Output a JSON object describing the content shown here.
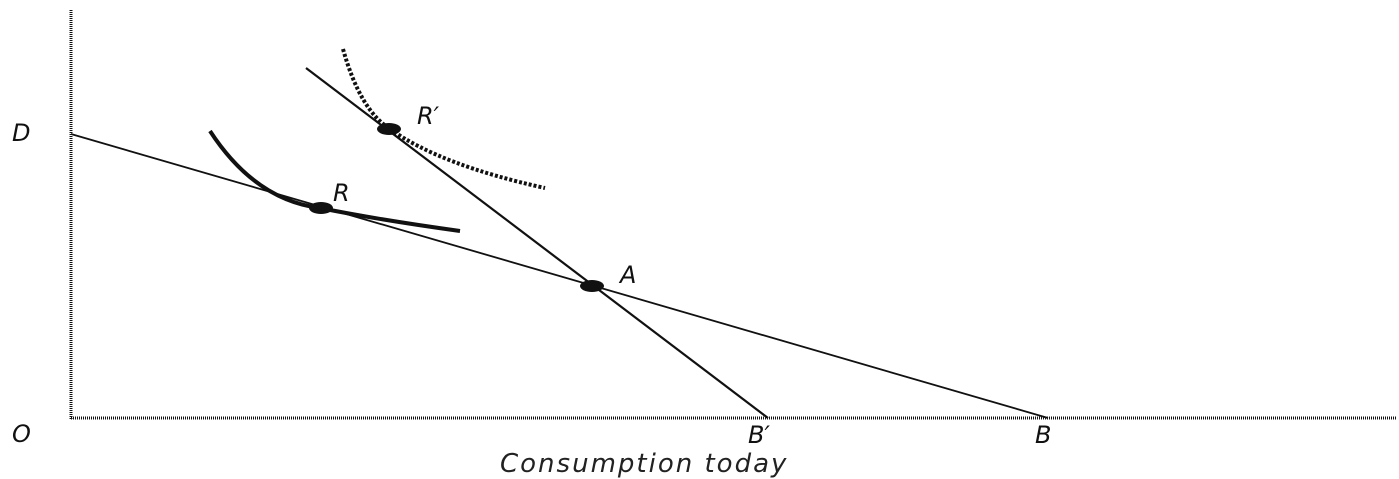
{
  "axes": {
    "origin_label": "O",
    "y_intercept_label": "D",
    "x_axis_title": "Consumption today"
  },
  "budget_lines": {
    "original_end_label": "B",
    "new_end_label": "B′"
  },
  "points": {
    "endowment": "A",
    "optimum_original": "R",
    "optimum_new": "R′"
  },
  "colors": {
    "ink": "#111111",
    "background": "#ffffff"
  }
}
